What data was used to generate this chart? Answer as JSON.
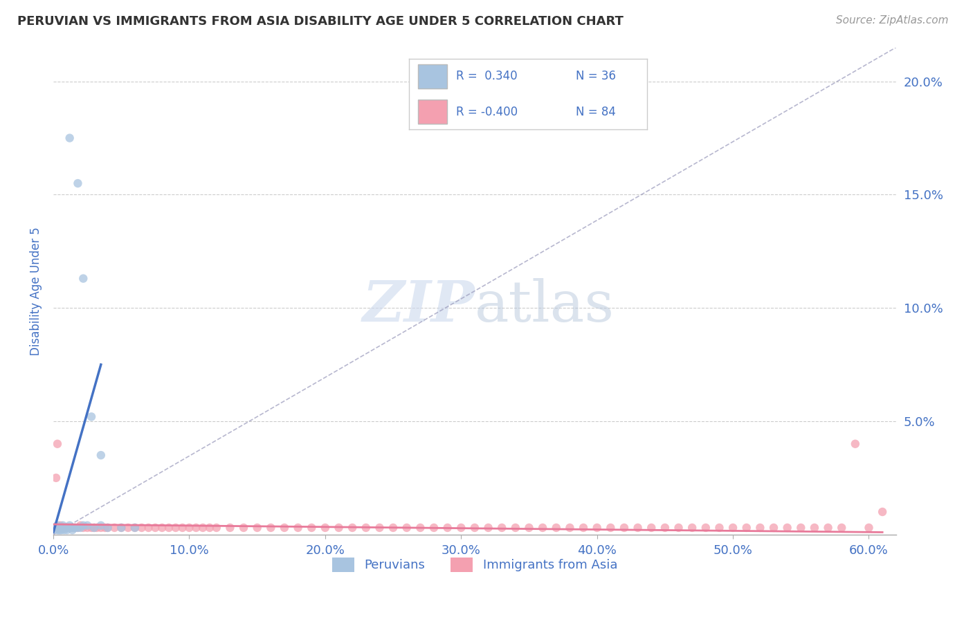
{
  "title": "PERUVIAN VS IMMIGRANTS FROM ASIA DISABILITY AGE UNDER 5 CORRELATION CHART",
  "source": "Source: ZipAtlas.com",
  "ylabel": "Disability Age Under 5",
  "xlim": [
    0.0,
    0.62
  ],
  "ylim": [
    0.0,
    0.215
  ],
  "xticks": [
    0.0,
    0.1,
    0.2,
    0.3,
    0.4,
    0.5,
    0.6
  ],
  "xticklabels": [
    "0.0%",
    "10.0%",
    "20.0%",
    "30.0%",
    "40.0%",
    "50.0%",
    "60.0%"
  ],
  "yticks_right": [
    0.05,
    0.1,
    0.15,
    0.2
  ],
  "yticklabels_right": [
    "5.0%",
    "10.0%",
    "15.0%",
    "20.0%"
  ],
  "blue_color": "#a8c4e0",
  "pink_color": "#f4a0b0",
  "blue_line_color": "#4472c4",
  "pink_line_color": "#e87a9a",
  "axis_label_color": "#4472c4",
  "tick_color": "#4472c4",
  "label1": "Peruvians",
  "label2": "Immigrants from Asia",
  "blue_scatter_x": [
    0.002,
    0.003,
    0.003,
    0.004,
    0.004,
    0.005,
    0.005,
    0.006,
    0.006,
    0.007,
    0.007,
    0.008,
    0.008,
    0.009,
    0.01,
    0.01,
    0.011,
    0.012,
    0.013,
    0.014,
    0.015,
    0.016,
    0.018,
    0.02,
    0.022,
    0.025,
    0.03,
    0.035,
    0.04,
    0.05,
    0.012,
    0.018,
    0.022,
    0.028,
    0.035,
    0.06
  ],
  "blue_scatter_y": [
    0.003,
    0.002,
    0.004,
    0.003,
    0.002,
    0.003,
    0.002,
    0.003,
    0.002,
    0.003,
    0.004,
    0.003,
    0.002,
    0.003,
    0.003,
    0.002,
    0.003,
    0.004,
    0.003,
    0.002,
    0.003,
    0.003,
    0.003,
    0.003,
    0.004,
    0.004,
    0.003,
    0.004,
    0.003,
    0.003,
    0.175,
    0.155,
    0.113,
    0.052,
    0.035,
    0.003
  ],
  "pink_scatter_x": [
    0.002,
    0.003,
    0.004,
    0.005,
    0.006,
    0.007,
    0.008,
    0.009,
    0.01,
    0.012,
    0.014,
    0.016,
    0.018,
    0.02,
    0.022,
    0.025,
    0.028,
    0.03,
    0.032,
    0.035,
    0.038,
    0.04,
    0.045,
    0.05,
    0.055,
    0.06,
    0.065,
    0.07,
    0.075,
    0.08,
    0.085,
    0.09,
    0.095,
    0.1,
    0.105,
    0.11,
    0.115,
    0.12,
    0.13,
    0.14,
    0.15,
    0.16,
    0.17,
    0.18,
    0.19,
    0.2,
    0.21,
    0.22,
    0.23,
    0.24,
    0.25,
    0.26,
    0.27,
    0.28,
    0.29,
    0.3,
    0.31,
    0.32,
    0.33,
    0.34,
    0.35,
    0.36,
    0.37,
    0.38,
    0.39,
    0.4,
    0.41,
    0.42,
    0.43,
    0.44,
    0.45,
    0.46,
    0.47,
    0.48,
    0.49,
    0.5,
    0.51,
    0.52,
    0.53,
    0.54,
    0.55,
    0.56,
    0.57,
    0.58,
    0.59,
    0.6,
    0.61,
    0.003,
    0.008
  ],
  "pink_scatter_y": [
    0.025,
    0.003,
    0.003,
    0.004,
    0.003,
    0.003,
    0.003,
    0.003,
    0.003,
    0.003,
    0.003,
    0.003,
    0.003,
    0.004,
    0.003,
    0.003,
    0.003,
    0.003,
    0.003,
    0.003,
    0.003,
    0.003,
    0.003,
    0.003,
    0.003,
    0.003,
    0.003,
    0.003,
    0.003,
    0.003,
    0.003,
    0.003,
    0.003,
    0.003,
    0.003,
    0.003,
    0.003,
    0.003,
    0.003,
    0.003,
    0.003,
    0.003,
    0.003,
    0.003,
    0.003,
    0.003,
    0.003,
    0.003,
    0.003,
    0.003,
    0.003,
    0.003,
    0.003,
    0.003,
    0.003,
    0.003,
    0.003,
    0.003,
    0.003,
    0.003,
    0.003,
    0.003,
    0.003,
    0.003,
    0.003,
    0.003,
    0.003,
    0.003,
    0.003,
    0.003,
    0.003,
    0.003,
    0.003,
    0.003,
    0.003,
    0.003,
    0.003,
    0.003,
    0.003,
    0.003,
    0.003,
    0.003,
    0.003,
    0.003,
    0.04,
    0.003,
    0.01,
    0.04,
    0.003
  ],
  "blue_trend_x": [
    0.002,
    0.06
  ],
  "blue_trend_y": [
    0.003,
    0.075
  ],
  "pink_trend_x": [
    0.0,
    0.61
  ],
  "pink_trend_y": [
    0.004,
    0.001
  ]
}
